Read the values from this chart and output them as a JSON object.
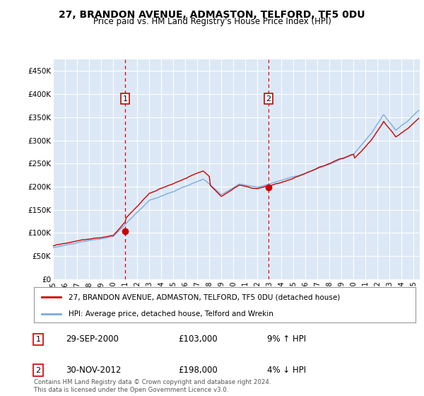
{
  "title": "27, BRANDON AVENUE, ADMASTON, TELFORD, TF5 0DU",
  "subtitle": "Price paid vs. HM Land Registry's House Price Index (HPI)",
  "ylabel_ticks": [
    "£0",
    "£50K",
    "£100K",
    "£150K",
    "£200K",
    "£250K",
    "£300K",
    "£350K",
    "£400K",
    "£450K"
  ],
  "ytick_vals": [
    0,
    50000,
    100000,
    150000,
    200000,
    250000,
    300000,
    350000,
    400000,
    450000
  ],
  "ylim": [
    0,
    475000
  ],
  "background_color": "#ffffff",
  "plot_bg_color": "#dce8f5",
  "grid_color": "#ffffff",
  "hpi_color": "#7aade0",
  "price_color": "#cc0000",
  "legend_label_price": "27, BRANDON AVENUE, ADMASTON, TELFORD, TF5 0DU (detached house)",
  "legend_label_hpi": "HPI: Average price, detached house, Telford and Wrekin",
  "sale1_label": "1",
  "sale1_date": "29-SEP-2000",
  "sale1_price": "£103,000",
  "sale1_hpi": "9% ↑ HPI",
  "sale1_year": 2001.0,
  "sale1_value": 103000,
  "sale2_label": "2",
  "sale2_date": "30-NOV-2012",
  "sale2_price": "£198,000",
  "sale2_hpi": "4% ↓ HPI",
  "sale2_year": 2012.92,
  "sale2_value": 198000,
  "footer": "Contains HM Land Registry data © Crown copyright and database right 2024.\nThis data is licensed under the Open Government Licence v3.0.",
  "xmin": 1995.0,
  "xmax": 2025.5,
  "xtick_years": [
    1995,
    1996,
    1997,
    1998,
    1999,
    2000,
    2001,
    2002,
    2003,
    2004,
    2005,
    2006,
    2007,
    2008,
    2009,
    2010,
    2011,
    2012,
    2013,
    2014,
    2015,
    2016,
    2017,
    2018,
    2019,
    2020,
    2021,
    2022,
    2023,
    2024,
    2025
  ],
  "title_fontsize": 10,
  "subtitle_fontsize": 8.5
}
